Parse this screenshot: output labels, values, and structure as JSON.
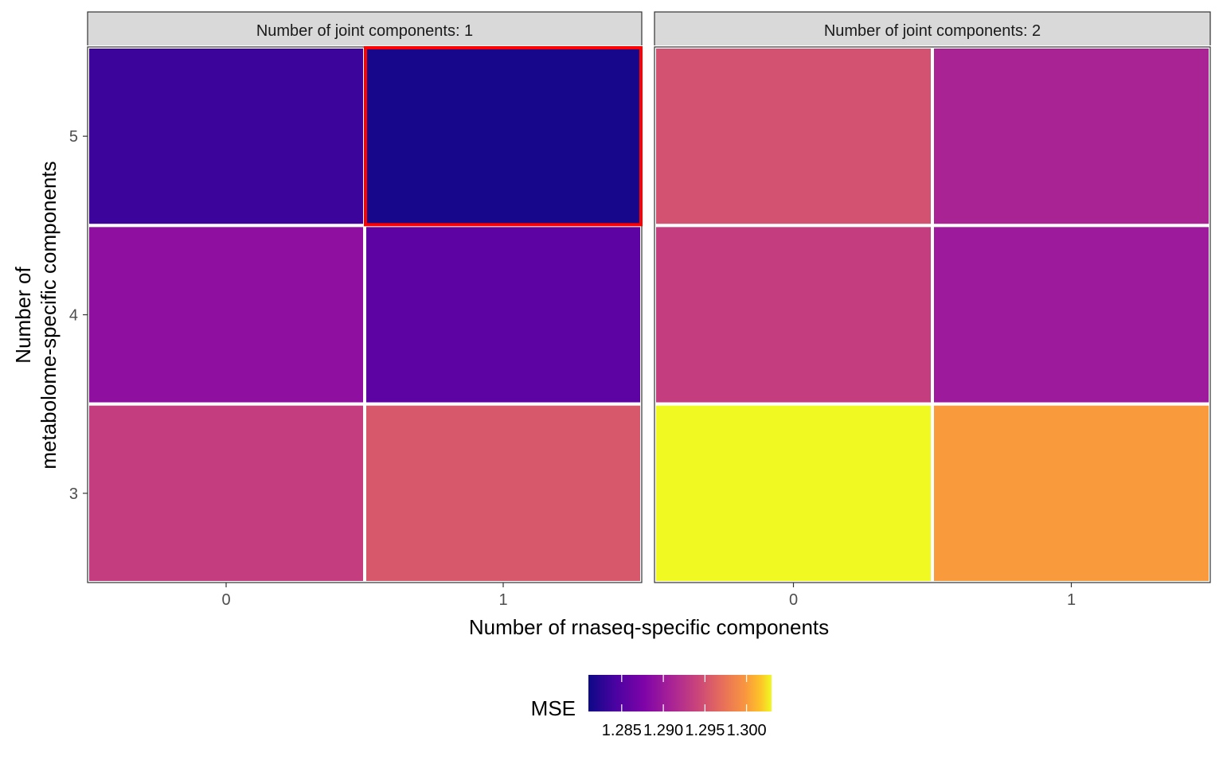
{
  "chart_data": {
    "type": "heatmap",
    "facets": [
      {
        "label": "Number of joint components: 1",
        "cells": [
          {
            "x": "0",
            "y": "5",
            "value": 1.2835
          },
          {
            "x": "1",
            "y": "5",
            "value": 1.2815,
            "highlight": true
          },
          {
            "x": "0",
            "y": "4",
            "value": 1.289
          },
          {
            "x": "1",
            "y": "4",
            "value": 1.2855
          },
          {
            "x": "0",
            "y": "3",
            "value": 1.2935
          },
          {
            "x": "1",
            "y": "3",
            "value": 1.2955
          }
        ]
      },
      {
        "label": "Number of joint components: 2",
        "cells": [
          {
            "x": "0",
            "y": "5",
            "value": 1.295
          },
          {
            "x": "1",
            "y": "5",
            "value": 1.291
          },
          {
            "x": "0",
            "y": "4",
            "value": 1.2935
          },
          {
            "x": "1",
            "y": "4",
            "value": 1.29
          },
          {
            "x": "0",
            "y": "3",
            "value": 1.303
          },
          {
            "x": "1",
            "y": "3",
            "value": 1.3
          }
        ]
      }
    ],
    "x_categories": [
      "0",
      "1"
    ],
    "y_categories": [
      "3",
      "4",
      "5"
    ],
    "xlabel": "Number of rnaseq-specific components",
    "ylabel_lines": [
      "Number of",
      "metabolome-specific components"
    ],
    "colorbar": {
      "title": "MSE",
      "palette": "plasma",
      "range": [
        1.281,
        1.303
      ],
      "ticks": [
        1.285,
        1.29,
        1.295,
        1.3
      ],
      "tick_labels": [
        "1.285",
        "1.290",
        "1.295",
        "1.300"
      ]
    },
    "highlight_color": "#ff0000",
    "legend_position": "bottom"
  }
}
